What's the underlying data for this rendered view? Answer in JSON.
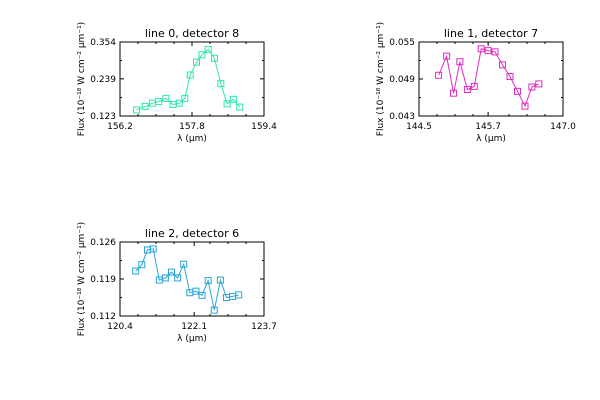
{
  "chart_data": [
    {
      "type": "line",
      "title": "line 0, detector 8",
      "xlabel": "λ (μm)",
      "ylabel": "Flux (10⁻¹⁸ W cm⁻² μm⁻¹)",
      "xlim": [
        156.2,
        159.4
      ],
      "ylim": [
        0.123,
        0.354
      ],
      "xticks": [
        "156.2",
        "157.8",
        "159.4"
      ],
      "yticks": [
        "0.123",
        "0.239",
        "0.354"
      ],
      "color": "#2ee6b0",
      "marker": "square",
      "x": [
        156.57,
        156.76,
        156.92,
        157.06,
        157.22,
        157.38,
        157.52,
        157.64,
        157.76,
        157.9,
        158.02,
        158.16,
        158.3,
        158.44,
        158.58,
        158.72,
        158.86
      ],
      "y": [
        0.142,
        0.153,
        0.163,
        0.168,
        0.178,
        0.159,
        0.163,
        0.178,
        0.251,
        0.291,
        0.314,
        0.331,
        0.303,
        0.224,
        0.161,
        0.175,
        0.151
      ]
    },
    {
      "type": "line",
      "title": "line 1, detector 7",
      "xlabel": "λ (μm)",
      "ylabel": "Flux (10⁻¹⁸ W cm⁻² μm⁻¹)",
      "xlim": [
        144.5,
        147.0
      ],
      "ylim": [
        0.043,
        0.055
      ],
      "xticks": [
        "144.5",
        "145.7",
        "147.0"
      ],
      "yticks": [
        "0.043",
        "0.049",
        "0.055"
      ],
      "color": "#e02bc0",
      "marker": "square",
      "x": [
        144.84,
        144.98,
        145.1,
        145.21,
        145.34,
        145.46,
        145.58,
        145.7,
        145.82,
        145.95,
        146.08,
        146.21,
        146.34,
        146.46,
        146.58
      ],
      "y": [
        0.0496,
        0.0527,
        0.0467,
        0.0518,
        0.0473,
        0.0478,
        0.0539,
        0.0536,
        0.0534,
        0.0513,
        0.0494,
        0.047,
        0.0446,
        0.0477,
        0.0482
      ]
    },
    {
      "type": "line",
      "title": "line 2, detector 6",
      "xlabel": "λ (μm)",
      "ylabel": "Flux (10⁻¹⁸ W cm⁻² μm⁻¹)",
      "xlim": [
        120.4,
        123.7
      ],
      "ylim": [
        0.112,
        0.126
      ],
      "xticks": [
        "120.4",
        "122.1",
        "123.7"
      ],
      "yticks": [
        "0.112",
        "0.119",
        "0.126"
      ],
      "color": "#2aa5d6",
      "marker": "square",
      "x": [
        120.76,
        120.9,
        121.03,
        121.16,
        121.3,
        121.44,
        121.58,
        121.72,
        121.86,
        122.0,
        122.14,
        122.28,
        122.42,
        122.56,
        122.7,
        122.84,
        122.98,
        123.12
      ],
      "y": [
        0.1205,
        0.1217,
        0.1245,
        0.1247,
        0.1188,
        0.1192,
        0.1203,
        0.1192,
        0.1218,
        0.1164,
        0.1167,
        0.1159,
        0.1187,
        0.1131,
        0.1188,
        0.1155,
        0.1157,
        0.116
      ]
    }
  ]
}
